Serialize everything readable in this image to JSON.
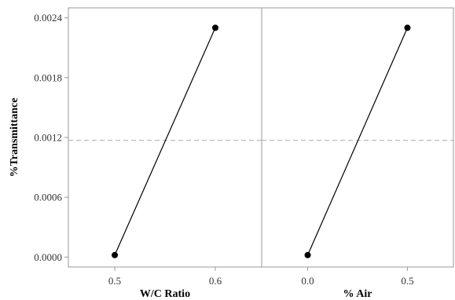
{
  "chart_data": {
    "type": "line",
    "ylabel": "%Transmittance",
    "yticks": [
      "0.0000",
      "0.0006",
      "0.0012",
      "0.0018",
      "0.0024"
    ],
    "ytick_values": [
      0.0,
      0.0006,
      0.0012,
      0.0018,
      0.0024
    ],
    "ylim": [
      -0.0001,
      0.0025
    ],
    "reference_line": 0.00117,
    "grid": false,
    "panels": [
      {
        "xlabel": "W/C Ratio",
        "categories": [
          "0.5",
          "0.6"
        ],
        "values": [
          2e-05,
          0.0023
        ]
      },
      {
        "xlabel": "% Air",
        "categories": [
          "0.0",
          "0.5"
        ],
        "values": [
          2e-05,
          0.0023
        ]
      }
    ],
    "colors": {
      "line": "#000000",
      "frame": "#999999",
      "reference": "#aaaaaa"
    }
  }
}
